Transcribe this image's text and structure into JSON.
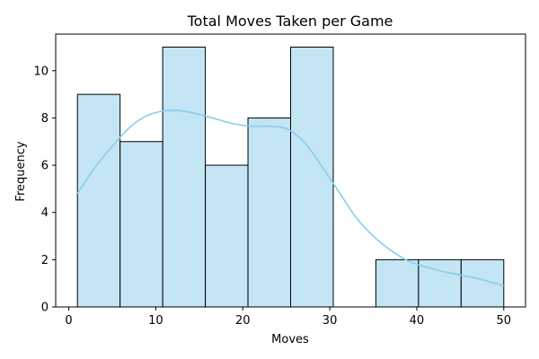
{
  "chart_data": {
    "type": "bar",
    "title": "Total Moves Taken per Game",
    "xlabel": "Moves",
    "ylabel": "Frequency",
    "bins": [
      {
        "start": 1.0,
        "end": 5.9,
        "count": 9
      },
      {
        "start": 5.9,
        "end": 10.8,
        "count": 7
      },
      {
        "start": 10.8,
        "end": 15.7,
        "count": 11
      },
      {
        "start": 15.7,
        "end": 20.6,
        "count": 6
      },
      {
        "start": 20.6,
        "end": 25.5,
        "count": 8
      },
      {
        "start": 25.5,
        "end": 30.4,
        "count": 11
      },
      {
        "start": 30.4,
        "end": 35.3,
        "count": 0
      },
      {
        "start": 35.3,
        "end": 40.2,
        "count": 2
      },
      {
        "start": 40.2,
        "end": 45.1,
        "count": 2
      },
      {
        "start": 45.1,
        "end": 50.0,
        "count": 2
      }
    ],
    "kde": {
      "x": [
        1,
        3,
        5,
        7,
        9,
        11,
        13,
        15,
        17,
        19,
        21,
        23,
        25,
        27,
        29,
        31,
        33,
        35,
        37,
        39,
        41,
        43,
        45,
        47,
        50
      ],
      "y": [
        4.8,
        5.9,
        6.8,
        7.6,
        8.1,
        8.3,
        8.3,
        8.15,
        7.95,
        7.75,
        7.65,
        7.65,
        7.55,
        7.0,
        6.0,
        4.9,
        3.8,
        3.0,
        2.4,
        1.95,
        1.7,
        1.5,
        1.35,
        1.2,
        0.9
      ]
    },
    "xlim": [
      -1.5,
      52.5
    ],
    "ylim": [
      0,
      11.55
    ],
    "xticks": [
      0,
      10,
      20,
      30,
      40,
      50
    ],
    "yticks": [
      0,
      2,
      4,
      6,
      8,
      10
    ],
    "bar_fill": "#c4e5f4",
    "bar_edge": "#000000",
    "kde_color": "#87ceeb",
    "grid": false
  }
}
